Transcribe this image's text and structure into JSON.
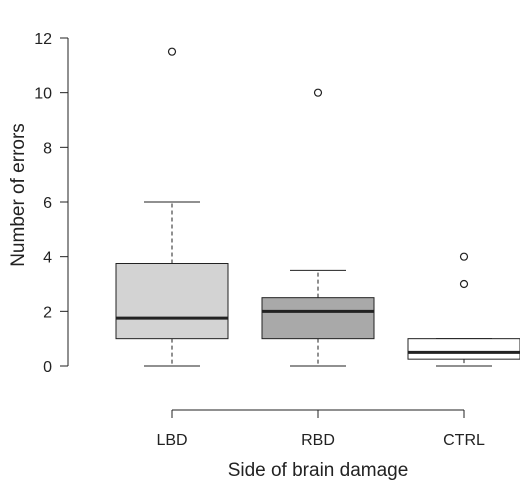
{
  "chart_data": {
    "type": "boxplot",
    "xlabel": "Side of brain damage",
    "ylabel": "Number of errors",
    "ylim": [
      0,
      12
    ],
    "yticks": [
      0,
      2,
      4,
      6,
      8,
      10,
      12
    ],
    "grid": false,
    "categories": [
      "LBD",
      "RBD",
      "CTRL"
    ],
    "boxes": [
      {
        "label": "LBD",
        "whisker_low": 0,
        "q1": 1,
        "median": 1.75,
        "q3": 3.75,
        "whisker_high": 6,
        "outliers": [
          11.5
        ],
        "fill": "#d3d3d3"
      },
      {
        "label": "RBD",
        "whisker_low": 0,
        "q1": 1,
        "median": 2,
        "q3": 2.5,
        "whisker_high": 3.5,
        "outliers": [
          10
        ],
        "fill": "#a9a9a9"
      },
      {
        "label": "CTRL",
        "whisker_low": 0,
        "q1": 0.25,
        "median": 0.5,
        "q3": 1,
        "whisker_high": 1,
        "outliers": [
          3,
          4
        ],
        "fill": "#ffffff"
      }
    ]
  }
}
